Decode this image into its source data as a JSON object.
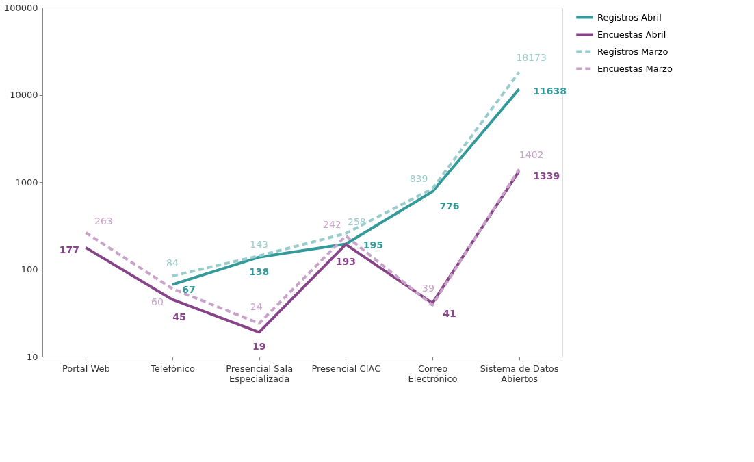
{
  "chart_data": {
    "type": "line",
    "categories": [
      "Portal Web",
      "Telefónico",
      "Presencial Sala Especializada",
      "Presencial CIAC",
      "Correo Electrónico",
      "Sistema de Datos Abiertos"
    ],
    "series": [
      {
        "name": "Registros Abril",
        "color": "#339999",
        "line_style": "solid",
        "values": [
          null,
          67,
          138,
          195,
          776,
          11638
        ]
      },
      {
        "name": "Encuestas Abril",
        "color": "#884488",
        "line_style": "solid",
        "values": [
          177,
          45,
          19,
          193,
          41,
          1339
        ]
      },
      {
        "name": "Registros Marzo",
        "color": "#99cccc",
        "line_style": "dashed",
        "values": [
          null,
          84,
          143,
          258,
          839,
          18173
        ]
      },
      {
        "name": "Encuestas Marzo",
        "color": "#c9a3c9",
        "line_style": "dashed",
        "values": [
          263,
          60,
          24,
          242,
          39,
          1402
        ]
      }
    ],
    "log": true,
    "ylim": [
      10,
      100000
    ],
    "yticks": [
      10,
      100,
      1000,
      10000,
      100000
    ],
    "grid": false,
    "legend": "right",
    "data_labels": true,
    "marker": "none"
  }
}
